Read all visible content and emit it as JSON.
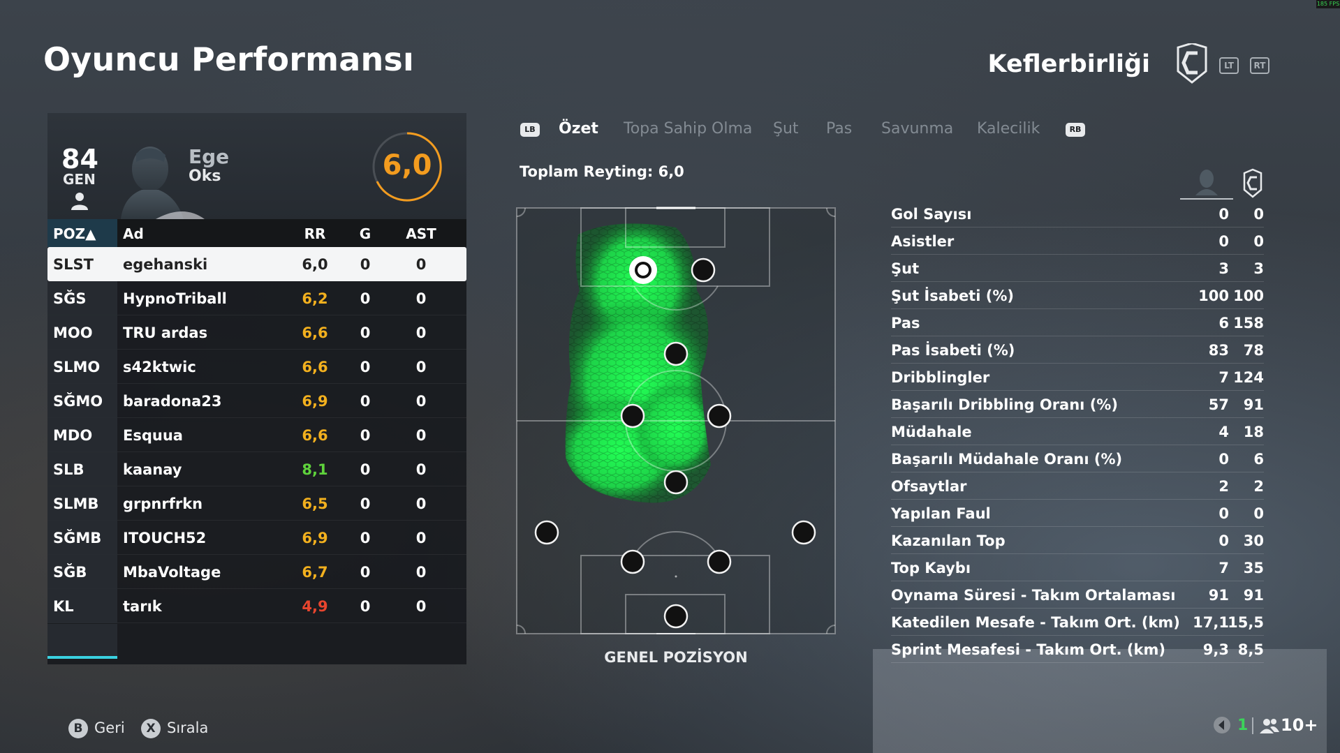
{
  "header": {
    "title": "Oyuncu Performansı",
    "team": "Keflerbirliği",
    "lt": "LT",
    "rt": "RT"
  },
  "player": {
    "overall": "84",
    "position": "GEN",
    "first_name": "Ege",
    "last_name": "Oks",
    "rating": "6,0",
    "rating_color": "#f39c1f"
  },
  "table": {
    "headers": {
      "pos": "POZ▲",
      "name": "Ad",
      "rr": "RR",
      "g": "G",
      "ast": "AST"
    },
    "rows": [
      {
        "pos": "SLST",
        "name": "egehanski",
        "rr": "6,0",
        "g": "0",
        "ast": "0",
        "rr_color": "#222222",
        "selected": true
      },
      {
        "pos": "SĞS",
        "name": "HypnoTriball",
        "rr": "6,2",
        "g": "0",
        "ast": "0",
        "rr_color": "#f2b01e"
      },
      {
        "pos": "MOO",
        "name": "TRU ardas",
        "rr": "6,6",
        "g": "0",
        "ast": "0",
        "rr_color": "#f2b01e"
      },
      {
        "pos": "SLMO",
        "name": "s42ktwic",
        "rr": "6,6",
        "g": "0",
        "ast": "0",
        "rr_color": "#f2b01e"
      },
      {
        "pos": "SĞMO",
        "name": "baradona23",
        "rr": "6,9",
        "g": "0",
        "ast": "0",
        "rr_color": "#f2b01e"
      },
      {
        "pos": "MDO",
        "name": "Esquua",
        "rr": "6,6",
        "g": "0",
        "ast": "0",
        "rr_color": "#f2b01e"
      },
      {
        "pos": "SLB",
        "name": "kaanay",
        "rr": "8,1",
        "g": "0",
        "ast": "0",
        "rr_color": "#5fd33c"
      },
      {
        "pos": "SLMB",
        "name": "grpnrfrkn",
        "rr": "6,5",
        "g": "0",
        "ast": "0",
        "rr_color": "#f2b01e"
      },
      {
        "pos": "SĞMB",
        "name": "ITOUCH52",
        "rr": "6,9",
        "g": "0",
        "ast": "0",
        "rr_color": "#f2b01e"
      },
      {
        "pos": "SĞB",
        "name": "MbaVoltage",
        "rr": "6,7",
        "g": "0",
        "ast": "0",
        "rr_color": "#f2b01e"
      },
      {
        "pos": "KL",
        "name": "tarık",
        "rr": "4,9",
        "g": "0",
        "ast": "0",
        "rr_color": "#e8452e"
      }
    ]
  },
  "tabs": {
    "lb": "LB",
    "rb": "RB",
    "items": [
      "Özet",
      "Topa Sahip Olma",
      "Şut",
      "Pas",
      "Savunma",
      "Kalecilik"
    ],
    "active": 0
  },
  "summary": {
    "total_rating": "Toplam Reyting: 6,0"
  },
  "pitch": {
    "label": "GENEL POZİSYON",
    "heat_color": "#1fff5a"
  },
  "stats": [
    {
      "label": "Gol Sayısı",
      "v1": "0",
      "v2": "0"
    },
    {
      "label": "Asistler",
      "v1": "0",
      "v2": "0"
    },
    {
      "label": "Şut",
      "v1": "3",
      "v2": "3"
    },
    {
      "label": "Şut İsabeti (%)",
      "v1": "100",
      "v2": "100"
    },
    {
      "label": "Pas",
      "v1": "6",
      "v2": "158"
    },
    {
      "label": "Pas İsabeti (%)",
      "v1": "83",
      "v2": "78"
    },
    {
      "label": "Dribblingler",
      "v1": "7",
      "v2": "124"
    },
    {
      "label": "Başarılı Dribbling Oranı (%)",
      "v1": "57",
      "v2": "91"
    },
    {
      "label": "Müdahale",
      "v1": "4",
      "v2": "18"
    },
    {
      "label": "Başarılı Müdahale Oranı (%)",
      "v1": "0",
      "v2": "6"
    },
    {
      "label": "Ofsaytlar",
      "v1": "2",
      "v2": "2"
    },
    {
      "label": "Yapılan Faul",
      "v1": "0",
      "v2": "0"
    },
    {
      "label": "Kazanılan Top",
      "v1": "0",
      "v2": "30"
    },
    {
      "label": "Top Kaybı",
      "v1": "7",
      "v2": "35"
    },
    {
      "label": "Oynama Süresi - Takım Ortalaması",
      "v1": "91",
      "v2": "91"
    },
    {
      "label": "Katedilen Mesafe - Takım Ort. (km)",
      "v1": "17,1",
      "v2": "15,5"
    },
    {
      "label": "Sprint Mesafesi - Takım Ort. (km)",
      "v1": "9,3",
      "v2": "8,5"
    }
  ],
  "footer": {
    "back_key": "B",
    "back_label": "Geri",
    "sort_key": "X",
    "sort_label": "Sırala",
    "network_count": "1",
    "players_count": "10+",
    "fps": "185 FPS"
  }
}
